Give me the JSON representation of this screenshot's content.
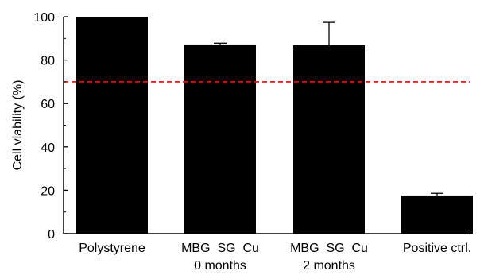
{
  "chart_data": {
    "type": "bar",
    "title": "",
    "xlabel": "",
    "ylabel": "Cell viability (%)",
    "ylim": [
      0,
      100
    ],
    "yticks": [
      0,
      20,
      40,
      60,
      80,
      100
    ],
    "categories": [
      [
        "Polystyrene"
      ],
      [
        "MBG_SG_Cu",
        "0 months"
      ],
      [
        "MBG_SG_Cu",
        "2 months"
      ],
      [
        "Positive ctrl."
      ]
    ],
    "values": [
      100,
      87.2,
      86.8,
      17.6
    ],
    "errors": [
      0,
      0.6,
      10.6,
      1.0
    ],
    "reference_line": {
      "y": 70,
      "style": "dashed",
      "color": "#ff0000"
    },
    "bar_color": "#000000",
    "grid": false,
    "legend": "none"
  }
}
